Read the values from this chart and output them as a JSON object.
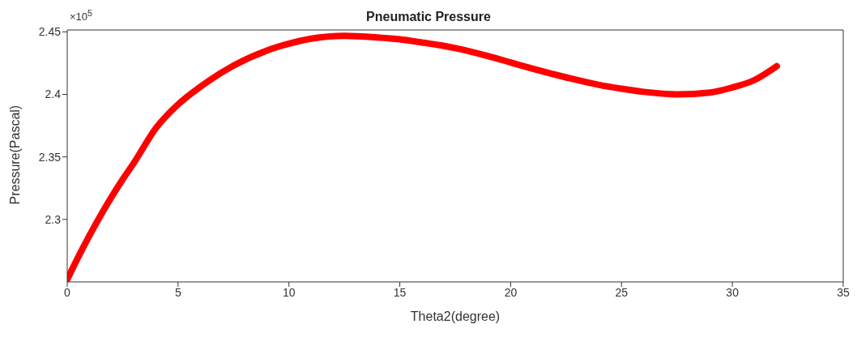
{
  "chart_data": {
    "type": "line",
    "title": "Pneumatic Pressure",
    "xlabel": "Theta2(degree)",
    "ylabel": "Pressure(Pascal)",
    "annotations": [
      "×10$^{5}$"
    ],
    "x": [
      0,
      0.5,
      1,
      1.5,
      2,
      2.5,
      3,
      4,
      5,
      6,
      7.5,
      9,
      10,
      11,
      12.5,
      14,
      15,
      16,
      17.5,
      19,
      20,
      21,
      22.5,
      24,
      25,
      26,
      27.5,
      29,
      30,
      31,
      32
    ],
    "series": [
      {
        "color": "#ff0000",
        "values": [
          2.252,
          2.27,
          2.287,
          2.303,
          2.318,
          2.332,
          2.345,
          2.373,
          2.392,
          2.406,
          2.423,
          2.435,
          2.4405,
          2.4445,
          2.4468,
          2.4455,
          2.444,
          2.4415,
          2.437,
          2.4305,
          2.4255,
          2.4205,
          2.4136,
          2.4075,
          2.4045,
          2.402,
          2.4,
          2.4015,
          2.4055,
          2.4115,
          2.4225
        ]
      }
    ],
    "xlim": [
      0,
      35
    ],
    "xticks": [
      0,
      5,
      10,
      15,
      20,
      25,
      30,
      35
    ],
    "ylim": [
      2.25,
      2.4515
    ],
    "yticks": [
      2.3,
      2.35,
      2.4,
      2.45
    ],
    "grid": false,
    "legend": false,
    "marker": "none",
    "line_style": "solid"
  }
}
